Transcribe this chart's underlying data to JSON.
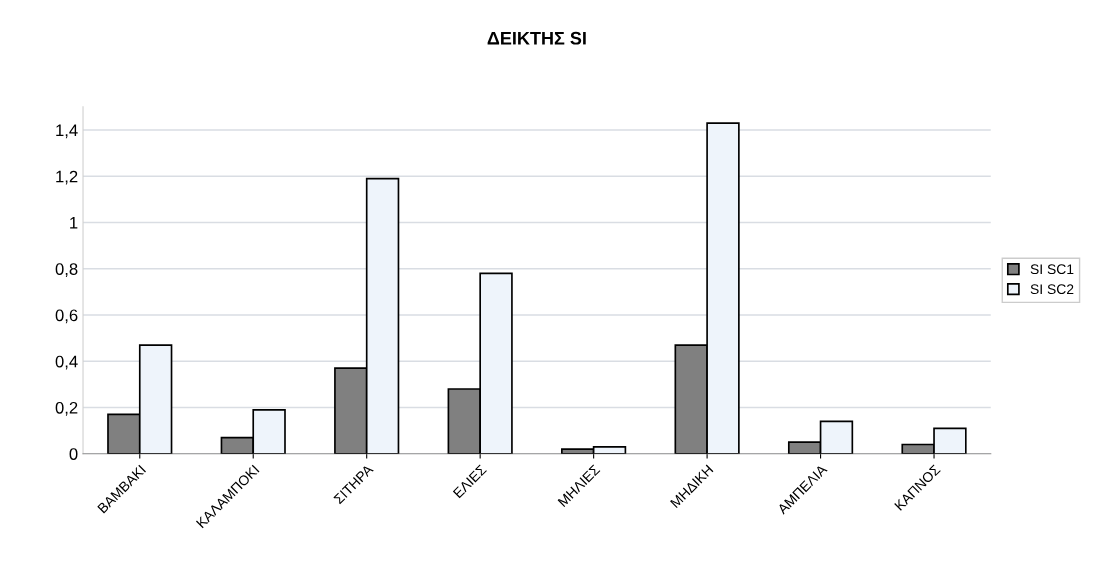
{
  "chart_data": {
    "type": "bar",
    "title": "ΔΕΙΚΤΗΣ SI",
    "categories": [
      "ΒΑΜΒΑΚΙ",
      "ΚΑΛΑΜΠΟΚΙ",
      "ΣΙΤΗΡΑ",
      "ΕΛΙΕΣ",
      "ΜΗΛΙΕΣ",
      "ΜΗΔΙΚΗ",
      "ΑΜΠΕΛΙΑ",
      "ΚΑΠΝΟΣ"
    ],
    "series": [
      {
        "name": "SI SC1",
        "color": "#808080",
        "values": [
          0.17,
          0.07,
          0.37,
          0.28,
          0.02,
          0.47,
          0.05,
          0.04
        ]
      },
      {
        "name": "SI SC2",
        "color": "#eef4fb",
        "values": [
          0.47,
          0.19,
          1.19,
          0.78,
          0.03,
          1.43,
          0.14,
          0.11
        ]
      }
    ],
    "ylim": [
      0,
      1.5
    ],
    "yticks": [
      0,
      {
        "value": 0.2,
        "label": "0,2"
      },
      {
        "value": 0.4,
        "label": "0,4"
      },
      {
        "value": 0.6,
        "label": "0,6"
      },
      {
        "value": 0.8,
        "label": "0,8"
      },
      1,
      {
        "value": 1.2,
        "label": "1,2"
      },
      {
        "value": 1.4,
        "label": "1,4"
      }
    ],
    "grid": "y",
    "legend": "right"
  }
}
